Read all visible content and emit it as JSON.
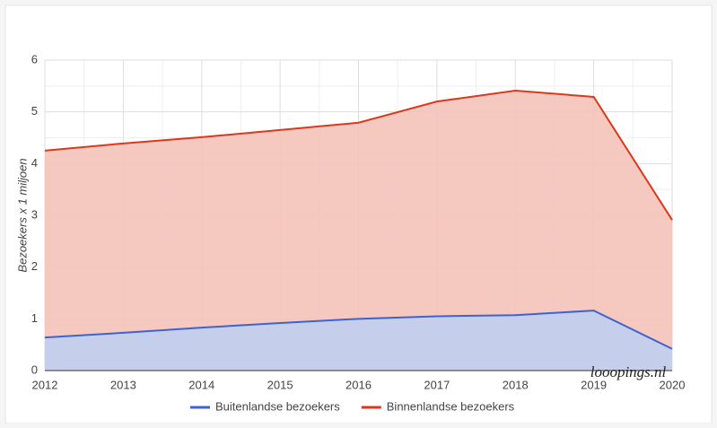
{
  "chart_data": {
    "type": "area",
    "y_label": "Bezoekers x 1 miljoen",
    "categories": [
      "2012",
      "2013",
      "2014",
      "2015",
      "2016",
      "2017",
      "2018",
      "2019",
      "2020"
    ],
    "series": [
      {
        "name": "Buitenlandse bezoekers",
        "color": "#3f63cf",
        "fill": "#c0cef0",
        "values": [
          0.64,
          0.73,
          0.83,
          0.92,
          1.0,
          1.05,
          1.07,
          1.16,
          0.42
        ]
      },
      {
        "name": "Binnenlandse bezoekers",
        "color": "#d9391c",
        "fill": "#f4c2b9",
        "values": [
          4.25,
          4.39,
          4.51,
          4.65,
          4.79,
          5.2,
          5.41,
          5.29,
          2.91
        ]
      }
    ],
    "ylim": [
      0,
      6
    ],
    "yticks": [
      0,
      1,
      2,
      3,
      4,
      5,
      6
    ],
    "grid": true,
    "watermark": "looopings.nl"
  }
}
